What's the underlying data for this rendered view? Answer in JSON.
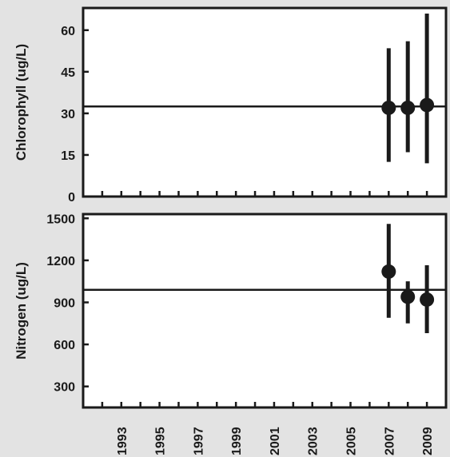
{
  "chart_data": [
    {
      "type": "scatter",
      "title": "",
      "xlabel": "",
      "ylabel": "Chlorophyll (ug/L)",
      "ylim": [
        0,
        68
      ],
      "yticks": [
        0,
        15,
        30,
        45,
        60
      ],
      "ytick_labels": [
        "0",
        "15",
        "30",
        "45",
        "60"
      ],
      "xlim": [
        1991,
        2010
      ],
      "reference_line": 32.5,
      "grid": false,
      "points": [
        {
          "x": 2007,
          "y": 32,
          "low": 12.5,
          "high": 53.5
        },
        {
          "x": 2008,
          "y": 32,
          "low": 16,
          "high": 56
        },
        {
          "x": 2009,
          "y": 33,
          "low": 12,
          "high": 66
        }
      ]
    },
    {
      "type": "scatter",
      "title": "",
      "xlabel": "",
      "ylabel": "Nitrogen (ug/L)",
      "ylim": [
        150,
        1530
      ],
      "yticks": [
        300,
        600,
        900,
        1200,
        1500
      ],
      "ytick_labels": [
        "300",
        "600",
        "900",
        "1200",
        "1500"
      ],
      "xlim": [
        1991,
        2010
      ],
      "xtick_labels": [
        "1993",
        "1995",
        "1997",
        "1999",
        "2001",
        "2003",
        "2005",
        "2007",
        "2009"
      ],
      "reference_line": 990,
      "grid": false,
      "points": [
        {
          "x": 2007,
          "y": 1120,
          "low": 790,
          "high": 1460
        },
        {
          "x": 2008,
          "y": 940,
          "low": 750,
          "high": 1050
        },
        {
          "x": 2009,
          "y": 920,
          "low": 680,
          "high": 1165
        }
      ]
    }
  ]
}
